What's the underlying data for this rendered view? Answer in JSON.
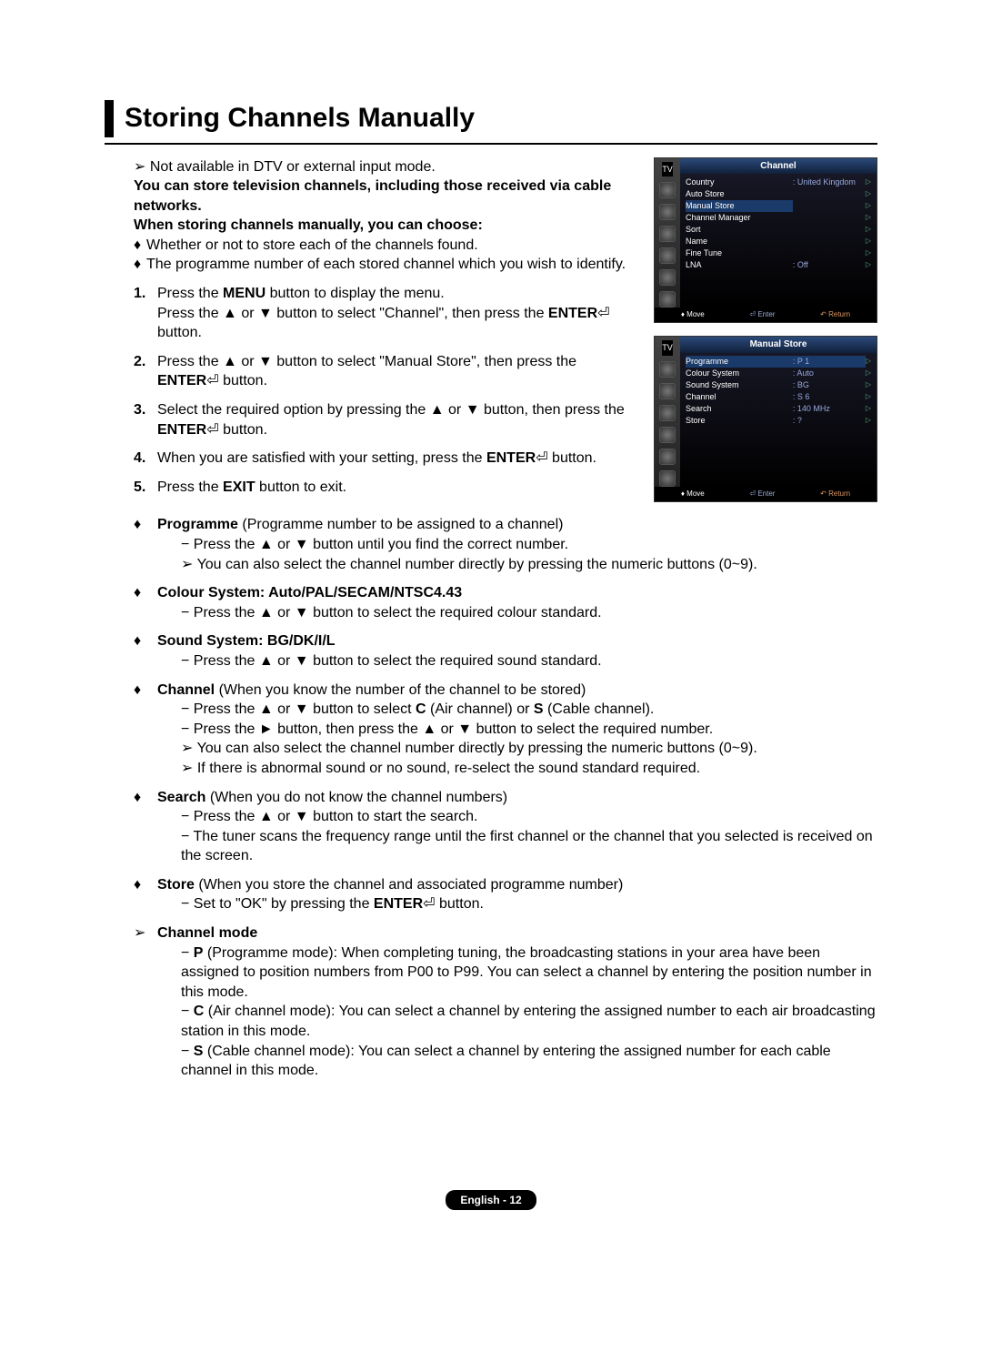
{
  "title": "Storing Channels Manually",
  "note": "Not available in DTV or external input mode.",
  "intro": [
    "You can store television channels, including those received via cable networks.",
    "When storing channels manually, you can choose:"
  ],
  "chooseList": [
    "Whether or not to store each of the channels found.",
    "The programme number of each stored channel which you wish to identify."
  ],
  "steps": [
    {
      "pre": "Press the ",
      "b1": "MENU",
      "mid1": " button to display the menu.\nPress the ▲ or ▼ button to select \"Channel\", then press the ",
      "b2": "ENTER",
      "mid2": "",
      "tail": " button."
    },
    {
      "pre": "Press the ▲ or ▼ button to select \"Manual Store\", then press the ",
      "b1": "ENTER",
      "mid1": "",
      "b2": "",
      "mid2": "",
      "tail": " button."
    },
    {
      "pre": "Select the required option by pressing the ▲ or ▼ button, then press the ",
      "b1": "ENTER",
      "mid1": "",
      "b2": "",
      "mid2": "",
      "tail": " button."
    },
    {
      "pre": "When you are satisfied with your setting, press the ",
      "b1": "ENTER",
      "mid1": "",
      "b2": "",
      "mid2": "",
      "tail": " button."
    },
    {
      "pre": "Press the ",
      "b1": "EXIT",
      "mid1": " button to exit.",
      "b2": "",
      "mid2": "",
      "tail": ""
    }
  ],
  "options": [
    {
      "head_b": "Programme",
      "head_rest": " (Programme number to be assigned to a channel)",
      "lines": [
        {
          "type": "dash",
          "text": "Press the ▲ or ▼ button until you find the correct number."
        },
        {
          "type": "ang",
          "text": "You can also select the channel number directly by pressing the numeric buttons (0~9)."
        }
      ]
    },
    {
      "head_b": "Colour System: Auto/PAL/SECAM/NTSC4.43",
      "head_rest": "",
      "lines": [
        {
          "type": "dash",
          "text": "Press the ▲ or ▼ button to select the required colour standard."
        }
      ]
    },
    {
      "head_b": "Sound System: BG/DK/I/L",
      "head_rest": "",
      "lines": [
        {
          "type": "dash",
          "text": "Press the ▲ or ▼ button to select the required sound standard."
        }
      ]
    },
    {
      "head_b": "Channel",
      "head_rest": " (When you know the number of the channel to be stored)",
      "lines": [
        {
          "type": "dash",
          "html": "Press the ▲ or ▼ button to select <b>C</b> (Air channel) or <b>S</b> (Cable channel)."
        },
        {
          "type": "dash",
          "text": "Press the ► button, then press the ▲ or ▼ button to select the required number."
        },
        {
          "type": "ang",
          "text": "You can also select the channel number directly by pressing the numeric buttons (0~9)."
        },
        {
          "type": "ang",
          "text": "If there is abnormal sound or no sound, re-select the sound standard required."
        }
      ]
    },
    {
      "head_b": "Search",
      "head_rest": " (When you do not know the channel numbers)",
      "lines": [
        {
          "type": "dash",
          "text": "Press the ▲ or ▼ button to start the search."
        },
        {
          "type": "dash",
          "text": "The tuner scans the frequency range until the first channel or the channel that you selected is received on the screen."
        }
      ]
    },
    {
      "head_b": "Store",
      "head_rest": " (When you store the channel and associated programme number)",
      "lines": [
        {
          "type": "dash",
          "html": "Set to \"OK\" by pressing the <b>ENTER</b><span class='enter-glyph'>⏎</span> button."
        }
      ]
    }
  ],
  "channelMode": {
    "title": "Channel mode",
    "items": [
      {
        "b": "P",
        "text": " (Programme mode): When completing tuning, the broadcasting stations in your area have been assigned to position numbers from P00 to P99. You can select a channel by entering the position number in this mode."
      },
      {
        "b": "C",
        "text": " (Air channel mode): You can select a channel by entering the assigned number to each air broadcasting station in this mode."
      },
      {
        "b": "S",
        "text": " (Cable channel mode): You can select a channel by entering the assigned number for each cable channel in this mode."
      }
    ]
  },
  "osd1": {
    "tvLabel": "TV",
    "header": "Channel",
    "rows": [
      {
        "label": "Country",
        "value": ": United Kingdom",
        "sel": false
      },
      {
        "label": "Auto Store",
        "value": "",
        "sel": false
      },
      {
        "label": "Manual Store",
        "value": "",
        "sel": true
      },
      {
        "label": "Channel Manager",
        "value": "",
        "sel": false
      },
      {
        "label": "Sort",
        "value": "",
        "sel": false
      },
      {
        "label": "Name",
        "value": "",
        "sel": false
      },
      {
        "label": "Fine Tune",
        "value": "",
        "sel": false
      },
      {
        "label": "LNA",
        "value": ": Off",
        "sel": false
      }
    ],
    "foot": {
      "move": "Move",
      "enter": "Enter",
      "return": "Return"
    }
  },
  "osd2": {
    "tvLabel": "TV",
    "header": "Manual Store",
    "rows": [
      {
        "label": "Programme",
        "value": ": P 1",
        "sel": true
      },
      {
        "label": "Colour System",
        "value": ": Auto",
        "sel": false
      },
      {
        "label": "Sound System",
        "value": ": BG",
        "sel": false
      },
      {
        "label": "Channel",
        "value": ": S 6",
        "sel": false
      },
      {
        "label": "Search",
        "value": ": 140 MHz",
        "sel": false
      },
      {
        "label": "Store",
        "value": ": ?",
        "sel": false
      }
    ],
    "foot": {
      "move": "Move",
      "enter": "Enter",
      "return": "Return"
    }
  },
  "footer": "English - 12",
  "glyphs": {
    "enter": "⏎",
    "diamond": "♦",
    "angle": "➢",
    "upDown": "♦",
    "returnArrow": "↶"
  }
}
